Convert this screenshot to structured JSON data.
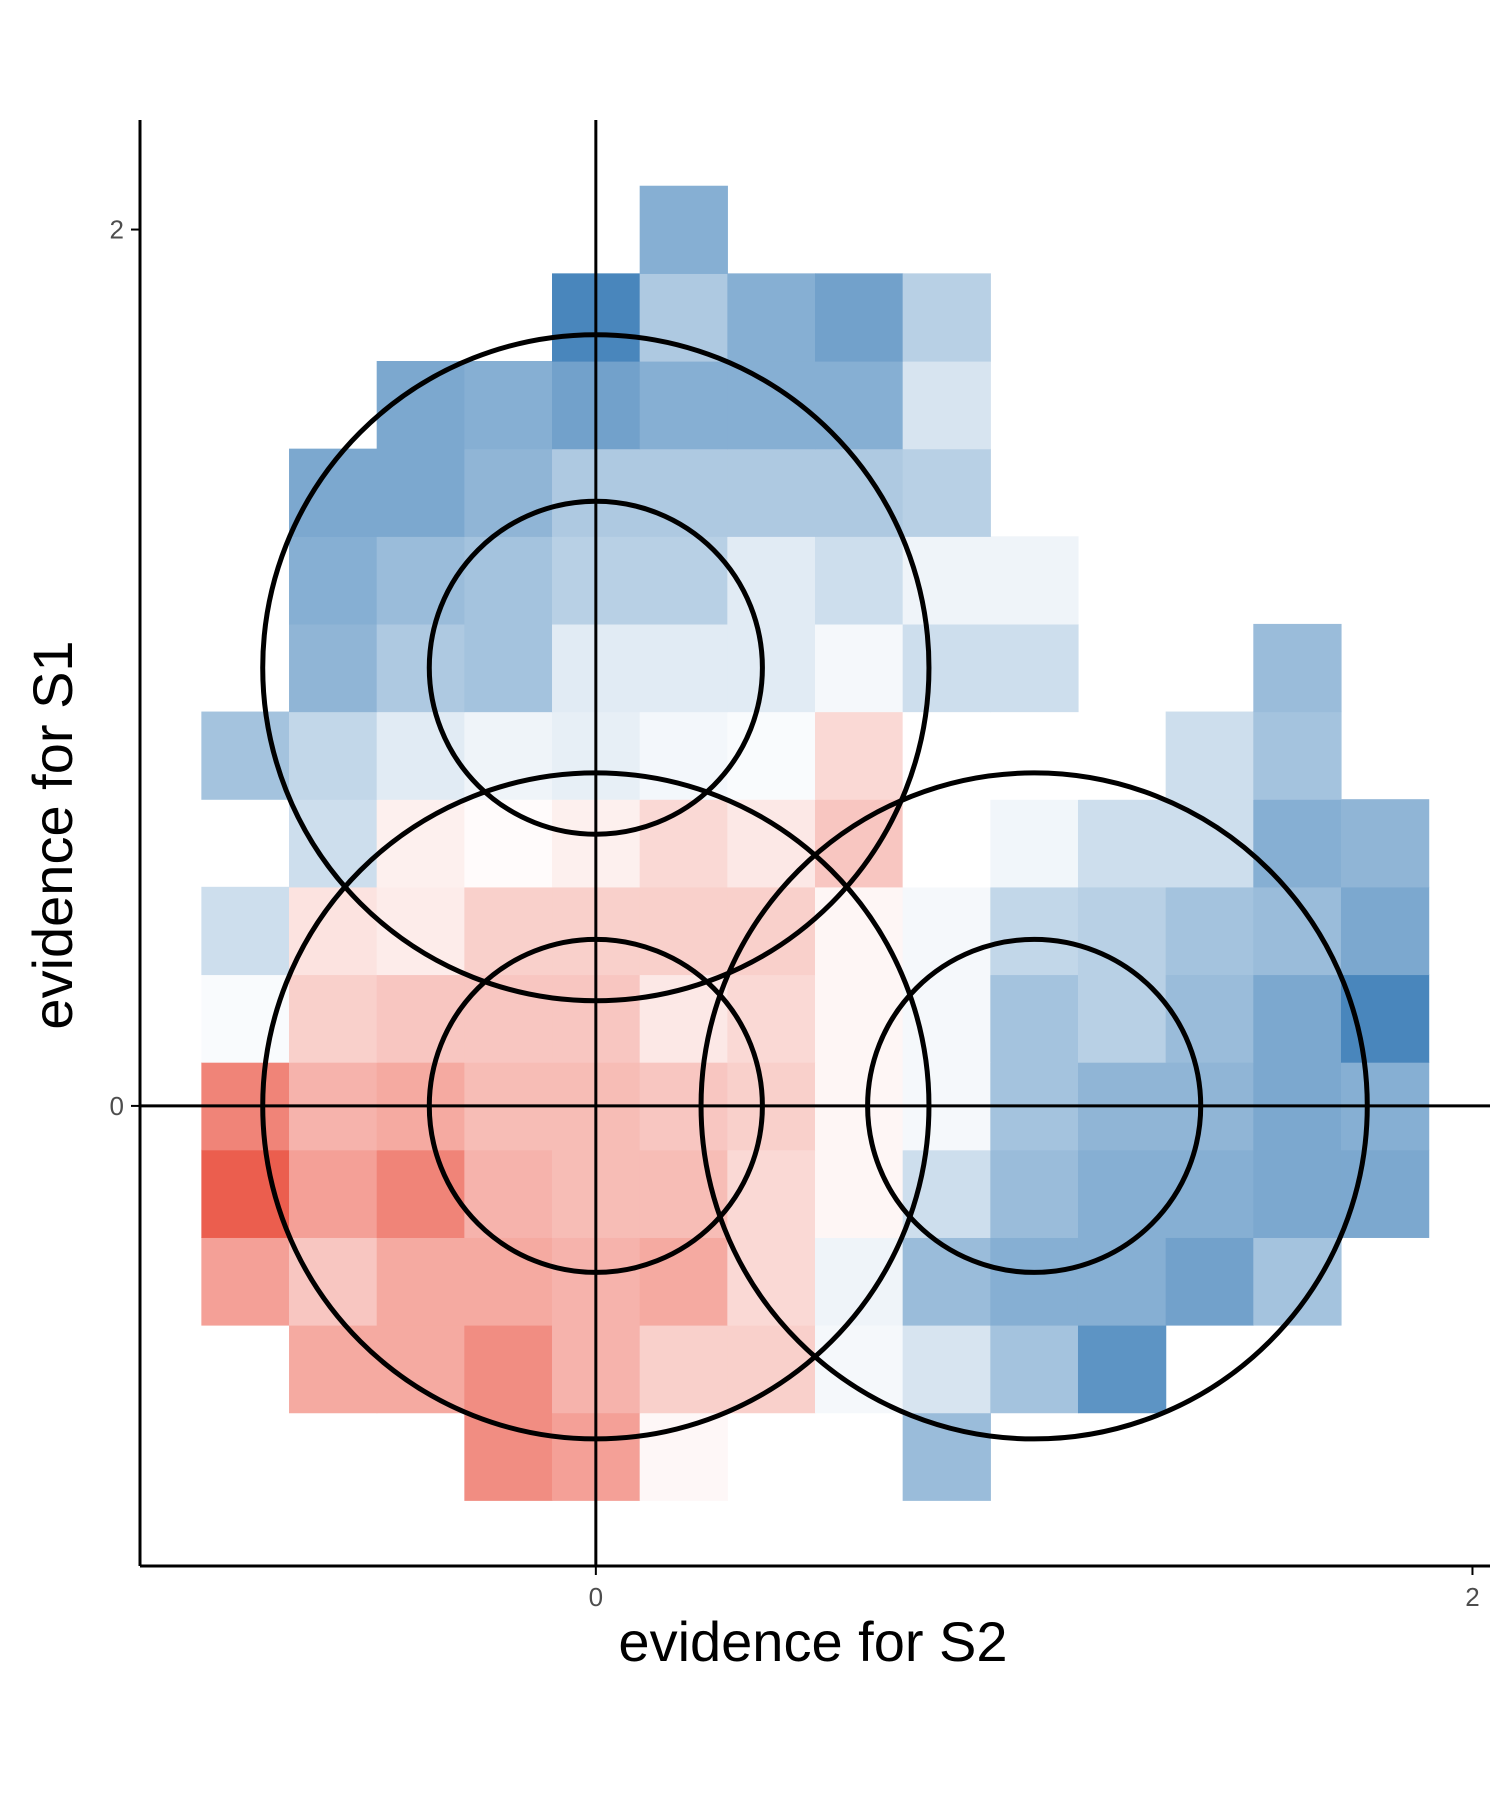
{
  "chart_data": {
    "type": "heatmap",
    "title": "",
    "xlabel": "evidence for S2",
    "ylabel": "evidence for S1",
    "xlim": [
      -1.04,
      2.04
    ],
    "ylim": [
      -1.05,
      2.25
    ],
    "x_ticks": [
      {
        "value": 0,
        "label": "0"
      },
      {
        "value": 2,
        "label": "2"
      }
    ],
    "y_ticks": [
      {
        "value": 0,
        "label": "0"
      },
      {
        "value": 2,
        "label": "2"
      }
    ],
    "grid": false,
    "reference_lines": {
      "x": 0,
      "y": 0
    },
    "bin_size": 0.2,
    "x_bins_start": -0.9,
    "y_bins_start": -0.9,
    "color_scale": {
      "negative_max": "#e8412f",
      "positive_max": "#3579b5",
      "neutral": "#ffffff",
      "range": [
        -1,
        1
      ]
    },
    "cells": [
      [
        -0.2,
        -0.8,
        -0.6
      ],
      [
        0.0,
        -0.8,
        -0.5
      ],
      [
        0.2,
        -0.8,
        -0.04
      ],
      [
        0.8,
        -0.8,
        0.5
      ],
      [
        -0.6,
        -0.6,
        -0.45
      ],
      [
        -0.4,
        -0.6,
        -0.45
      ],
      [
        -0.2,
        -0.6,
        -0.6
      ],
      [
        0.0,
        -0.6,
        -0.4
      ],
      [
        0.2,
        -0.6,
        -0.25
      ],
      [
        0.4,
        -0.6,
        -0.25
      ],
      [
        0.6,
        -0.6,
        0.05
      ],
      [
        0.8,
        -0.6,
        0.2
      ],
      [
        1.0,
        -0.6,
        0.45
      ],
      [
        1.2,
        -0.6,
        0.8
      ],
      [
        -0.8,
        -0.4,
        -0.5
      ],
      [
        -0.6,
        -0.4,
        -0.3
      ],
      [
        -0.4,
        -0.4,
        -0.45
      ],
      [
        -0.2,
        -0.4,
        -0.45
      ],
      [
        0.0,
        -0.4,
        -0.4
      ],
      [
        0.2,
        -0.4,
        -0.45
      ],
      [
        0.4,
        -0.4,
        -0.2
      ],
      [
        0.6,
        -0.4,
        0.08
      ],
      [
        0.8,
        -0.4,
        0.5
      ],
      [
        1.0,
        -0.4,
        0.6
      ],
      [
        1.2,
        -0.4,
        0.6
      ],
      [
        1.4,
        -0.4,
        0.7
      ],
      [
        1.6,
        -0.4,
        0.45
      ],
      [
        -0.8,
        -0.2,
        -0.85
      ],
      [
        -0.6,
        -0.2,
        -0.5
      ],
      [
        -0.4,
        -0.2,
        -0.65
      ],
      [
        -0.2,
        -0.2,
        -0.4
      ],
      [
        0.0,
        -0.2,
        -0.35
      ],
      [
        0.2,
        -0.2,
        -0.35
      ],
      [
        0.4,
        -0.2,
        -0.2
      ],
      [
        0.6,
        -0.2,
        -0.05
      ],
      [
        0.8,
        -0.2,
        0.25
      ],
      [
        1.0,
        -0.2,
        0.5
      ],
      [
        1.2,
        -0.2,
        0.6
      ],
      [
        1.4,
        -0.2,
        0.6
      ],
      [
        1.6,
        -0.2,
        0.65
      ],
      [
        1.8,
        -0.2,
        0.65
      ],
      [
        -0.8,
        0.0,
        -0.65
      ],
      [
        -0.6,
        0.0,
        -0.4
      ],
      [
        -0.4,
        0.0,
        -0.45
      ],
      [
        -0.2,
        0.0,
        -0.35
      ],
      [
        0.0,
        0.0,
        -0.35
      ],
      [
        0.2,
        0.0,
        -0.3
      ],
      [
        0.4,
        0.0,
        -0.25
      ],
      [
        0.6,
        0.0,
        -0.05
      ],
      [
        0.8,
        0.0,
        0.05
      ],
      [
        1.0,
        0.0,
        0.45
      ],
      [
        1.2,
        0.0,
        0.55
      ],
      [
        1.4,
        0.0,
        0.55
      ],
      [
        1.6,
        0.0,
        0.65
      ],
      [
        1.8,
        0.0,
        0.6
      ],
      [
        -0.8,
        0.2,
        0.03
      ],
      [
        -0.6,
        0.2,
        -0.25
      ],
      [
        -0.4,
        0.2,
        -0.3
      ],
      [
        -0.2,
        0.2,
        -0.3
      ],
      [
        0.0,
        0.2,
        -0.3
      ],
      [
        0.2,
        0.2,
        -0.12
      ],
      [
        0.4,
        0.2,
        -0.2
      ],
      [
        0.6,
        0.2,
        -0.05
      ],
      [
        0.8,
        0.2,
        0.05
      ],
      [
        1.0,
        0.2,
        0.45
      ],
      [
        1.2,
        0.2,
        0.35
      ],
      [
        1.4,
        0.2,
        0.5
      ],
      [
        1.6,
        0.2,
        0.65
      ],
      [
        1.8,
        0.2,
        0.9
      ],
      [
        -0.8,
        0.4,
        0.25
      ],
      [
        -0.6,
        0.4,
        -0.15
      ],
      [
        -0.4,
        0.4,
        -0.1
      ],
      [
        -0.2,
        0.4,
        -0.25
      ],
      [
        0.0,
        0.4,
        -0.25
      ],
      [
        0.2,
        0.4,
        -0.25
      ],
      [
        0.4,
        0.4,
        -0.25
      ],
      [
        0.6,
        0.4,
        -0.05
      ],
      [
        0.8,
        0.4,
        0.05
      ],
      [
        1.0,
        0.4,
        0.3
      ],
      [
        1.2,
        0.4,
        0.35
      ],
      [
        1.4,
        0.4,
        0.45
      ],
      [
        1.6,
        0.4,
        0.5
      ],
      [
        1.8,
        0.4,
        0.65
      ],
      [
        -0.6,
        0.6,
        0.25
      ],
      [
        -0.4,
        0.6,
        -0.08
      ],
      [
        -0.2,
        0.6,
        -0.02
      ],
      [
        0.0,
        0.6,
        -0.08
      ],
      [
        0.2,
        0.6,
        -0.2
      ],
      [
        0.4,
        0.6,
        -0.12
      ],
      [
        0.6,
        0.6,
        -0.3
      ],
      [
        0.8,
        0.6,
        0.0
      ],
      [
        1.0,
        0.6,
        0.07
      ],
      [
        1.2,
        0.6,
        0.25
      ],
      [
        1.4,
        0.6,
        0.25
      ],
      [
        1.6,
        0.6,
        0.6
      ],
      [
        1.8,
        0.6,
        0.55
      ],
      [
        -0.8,
        0.8,
        0.45
      ],
      [
        -0.6,
        0.8,
        0.3
      ],
      [
        -0.4,
        0.8,
        0.15
      ],
      [
        -0.2,
        0.8,
        0.08
      ],
      [
        0.0,
        0.8,
        0.12
      ],
      [
        0.2,
        0.8,
        0.06
      ],
      [
        0.4,
        0.8,
        0.03
      ],
      [
        0.6,
        0.8,
        -0.2
      ],
      [
        0.8,
        0.8,
        0.0
      ],
      [
        1.0,
        0.8,
        0.0
      ],
      [
        1.2,
        0.8,
        0.0
      ],
      [
        1.4,
        0.8,
        0.25
      ],
      [
        1.6,
        0.8,
        0.45
      ],
      [
        -0.6,
        1.0,
        0.55
      ],
      [
        -0.4,
        1.0,
        0.4
      ],
      [
        -0.2,
        1.0,
        0.45
      ],
      [
        0.0,
        1.0,
        0.15
      ],
      [
        0.2,
        1.0,
        0.15
      ],
      [
        0.4,
        1.0,
        0.15
      ],
      [
        0.6,
        1.0,
        0.05
      ],
      [
        0.8,
        1.0,
        0.25
      ],
      [
        1.0,
        1.0,
        0.25
      ],
      [
        1.6,
        1.0,
        0.5
      ],
      [
        -0.6,
        1.2,
        0.6
      ],
      [
        -0.4,
        1.2,
        0.5
      ],
      [
        -0.2,
        1.2,
        0.45
      ],
      [
        0.0,
        1.2,
        0.35
      ],
      [
        0.2,
        1.2,
        0.35
      ],
      [
        0.4,
        1.2,
        0.15
      ],
      [
        0.6,
        1.2,
        0.25
      ],
      [
        0.8,
        1.2,
        0.08
      ],
      [
        1.0,
        1.2,
        0.08
      ],
      [
        -0.6,
        1.4,
        0.65
      ],
      [
        -0.4,
        1.4,
        0.65
      ],
      [
        -0.2,
        1.4,
        0.55
      ],
      [
        0.0,
        1.4,
        0.4
      ],
      [
        0.2,
        1.4,
        0.4
      ],
      [
        0.4,
        1.4,
        0.4
      ],
      [
        0.6,
        1.4,
        0.4
      ],
      [
        0.8,
        1.4,
        0.35
      ],
      [
        -0.4,
        1.6,
        0.65
      ],
      [
        -0.2,
        1.6,
        0.6
      ],
      [
        0.0,
        1.6,
        0.7
      ],
      [
        0.2,
        1.6,
        0.6
      ],
      [
        0.4,
        1.6,
        0.6
      ],
      [
        0.6,
        1.6,
        0.6
      ],
      [
        0.8,
        1.6,
        0.2
      ],
      [
        0.0,
        1.8,
        0.9
      ],
      [
        0.2,
        1.8,
        0.4
      ],
      [
        0.4,
        1.8,
        0.6
      ],
      [
        0.6,
        1.8,
        0.7
      ],
      [
        0.8,
        1.8,
        0.35
      ],
      [
        0.2,
        2.0,
        0.6
      ]
    ],
    "circles": [
      {
        "cx": 0,
        "cy": 1,
        "r": 0.38
      },
      {
        "cx": 0,
        "cy": 1,
        "r": 0.76
      },
      {
        "cx": 0,
        "cy": 0,
        "r": 0.38
      },
      {
        "cx": 0,
        "cy": 0,
        "r": 0.76
      },
      {
        "cx": 1,
        "cy": 0,
        "r": 0.38
      },
      {
        "cx": 1,
        "cy": 0,
        "r": 0.76
      }
    ]
  }
}
